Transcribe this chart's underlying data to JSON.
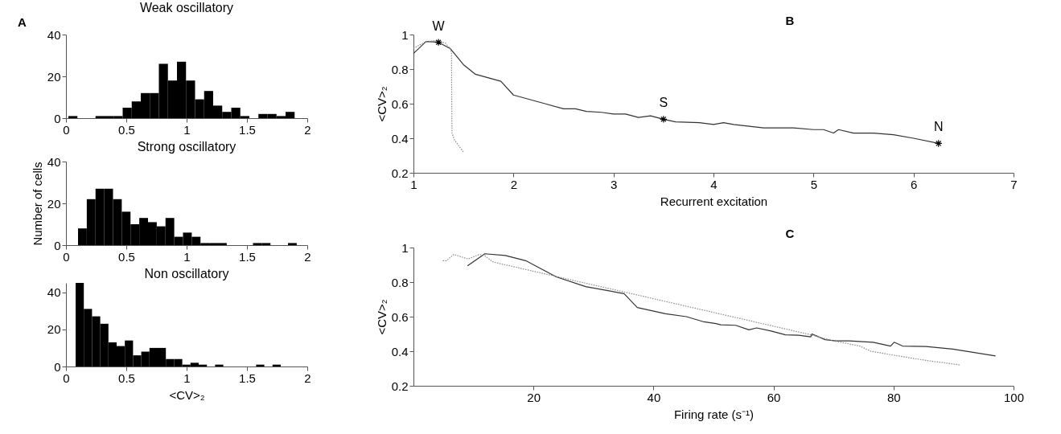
{
  "chart_data": [
    {
      "type": "histogram",
      "title": "Weak oscillatory",
      "annotations": [
        "A"
      ],
      "color": "#000000",
      "xlim": [
        0,
        2
      ],
      "xticks": [
        0,
        0.5,
        1,
        1.5,
        2
      ],
      "ylim": [
        0,
        40
      ],
      "yticks": [
        0,
        20,
        40
      ],
      "bins": [
        0.02,
        0.095,
        0.17,
        0.245,
        0.32,
        0.395,
        0.47,
        0.545,
        0.62,
        0.695,
        0.77,
        0.845,
        0.92,
        0.995,
        1.07,
        1.145,
        1.22,
        1.295,
        1.37,
        1.445,
        1.52,
        1.595,
        1.67,
        1.745,
        1.82,
        1.895
      ],
      "values": [
        1,
        0,
        0,
        1,
        1,
        1,
        5,
        8,
        12,
        12,
        26,
        18,
        27,
        18,
        9,
        13,
        6,
        3,
        5,
        1,
        0,
        2,
        2,
        1,
        3
      ]
    },
    {
      "type": "histogram",
      "title": "Strong oscillatory",
      "ylabel": "Number of cells",
      "color": "#000000",
      "xlim": [
        0,
        2
      ],
      "xticks": [
        0,
        0.5,
        1,
        1.5,
        2
      ],
      "ylim": [
        0,
        40
      ],
      "yticks": [
        0,
        20,
        40
      ],
      "bins": [
        0.1,
        0.1725,
        0.245,
        0.3175,
        0.39,
        0.4625,
        0.535,
        0.6075,
        0.68,
        0.7525,
        0.825,
        0.8975,
        0.97,
        1.0425,
        1.115,
        1.1875,
        1.26,
        1.3325,
        1.405,
        1.4775,
        1.55,
        1.6225,
        1.695,
        1.7675,
        1.84,
        1.9125
      ],
      "values": [
        8,
        22,
        27,
        27,
        22,
        16,
        10,
        13,
        11,
        9,
        13,
        4,
        6,
        4,
        1,
        1,
        1,
        0,
        0,
        0,
        1,
        1,
        0,
        0,
        1
      ]
    },
    {
      "type": "histogram",
      "title": "Non oscillatory",
      "xlabel": "<CV>₂",
      "color": "#000000",
      "xlim": [
        0,
        2
      ],
      "xticks": [
        0,
        0.5,
        1,
        1.5,
        2
      ],
      "ylim": [
        0,
        45
      ],
      "yticks": [
        0,
        20,
        40
      ],
      "bins": [
        0.08,
        0.148,
        0.216,
        0.284,
        0.352,
        0.42,
        0.488,
        0.556,
        0.624,
        0.692,
        0.76,
        0.828,
        0.896,
        0.964,
        1.032,
        1.1,
        1.168,
        1.236,
        1.304,
        1.372,
        1.44,
        1.508,
        1.576,
        1.644,
        1.712,
        1.78
      ],
      "values": [
        45,
        31,
        27,
        23,
        13,
        11,
        14,
        6,
        8,
        10,
        10,
        4,
        4,
        1,
        2,
        1,
        0,
        1,
        0,
        0,
        0,
        0,
        1,
        0,
        1
      ]
    },
    {
      "type": "line",
      "xlabel": "Recurrent excitation",
      "ylabel": "<CV>₂",
      "xlim": [
        1,
        7
      ],
      "xticks": [
        1,
        2,
        3,
        4,
        5,
        6,
        7
      ],
      "ylim": [
        0.2,
        1
      ],
      "yticks": [
        0.2,
        0.4,
        0.6,
        0.8,
        1
      ],
      "annotations": [
        "B",
        {
          "text": "W",
          "x": 1.25,
          "y": 0.955
        },
        {
          "text": "S",
          "x": 3.5,
          "y": 0.51
        },
        {
          "text": "N",
          "x": 6.25,
          "y": 0.37
        }
      ],
      "series": [
        {
          "type": "line",
          "color": "#333333",
          "line_style": "solid",
          "x": [
            1,
            1.126,
            1.246,
            1.366,
            1.5,
            1.62,
            1.874,
            2,
            2.315,
            2.5,
            2.62,
            2.73,
            2.88,
            3,
            3.12,
            3.25,
            3.37,
            3.5,
            3.62,
            3.86,
            4,
            4.1,
            4.2,
            4.5,
            4.8,
            5,
            5.1,
            5.2,
            5.25,
            5.4,
            5.6,
            5.8,
            6,
            6.25
          ],
          "values": [
            0.89,
            0.96,
            0.956,
            0.92,
            0.826,
            0.77,
            0.73,
            0.65,
            0.6,
            0.57,
            0.57,
            0.555,
            0.55,
            0.54,
            0.54,
            0.52,
            0.53,
            0.51,
            0.495,
            0.49,
            0.48,
            0.49,
            0.48,
            0.46,
            0.46,
            0.45,
            0.45,
            0.43,
            0.45,
            0.43,
            0.43,
            0.42,
            0.4,
            0.37
          ]
        },
        {
          "type": "line",
          "color": "#888888",
          "line_style": "dotted",
          "x": [
            1,
            1.126,
            1.246,
            1.32,
            1.366,
            1.38,
            1.385,
            1.41,
            1.5
          ],
          "values": [
            0.92,
            0.96,
            0.965,
            0.95,
            0.92,
            0.9,
            0.43,
            0.39,
            0.32
          ]
        },
        {
          "type": "scatter",
          "color": "#000000",
          "marker": "cross",
          "x": [
            1.25,
            3.5,
            6.25
          ],
          "values": [
            0.955,
            0.51,
            0.37
          ]
        }
      ]
    },
    {
      "type": "line",
      "xlabel": "Firing rate (s⁻¹)",
      "ylabel": "<CV>₂",
      "xlim": [
        0,
        100
      ],
      "xticks": [
        20,
        40,
        60,
        80,
        100
      ],
      "ylim": [
        0.2,
        1
      ],
      "yticks": [
        0.2,
        0.4,
        0.6,
        0.8,
        1
      ],
      "annotations": [
        "C"
      ],
      "series": [
        {
          "type": "line",
          "color": "#333333",
          "line_style": "solid",
          "x": [
            9,
            11.9,
            15.3,
            18.7,
            23.8,
            28.7,
            35.1,
            37.3,
            42,
            45.5,
            48.4,
            50.4,
            51.2,
            53.7,
            55.9,
            57.2,
            59.6,
            62,
            64.2,
            66.2,
            66.4,
            68.6,
            70.4,
            72.6,
            76.6,
            79.5,
            80.1,
            81.5,
            85.4,
            89.9,
            97
          ],
          "values": [
            0.894,
            0.964,
            0.954,
            0.924,
            0.83,
            0.774,
            0.733,
            0.653,
            0.617,
            0.6,
            0.57,
            0.56,
            0.553,
            0.55,
            0.524,
            0.535,
            0.517,
            0.495,
            0.492,
            0.483,
            0.5,
            0.467,
            0.46,
            0.46,
            0.452,
            0.43,
            0.452,
            0.43,
            0.427,
            0.412,
            0.373
          ]
        },
        {
          "type": "line",
          "color": "#888888",
          "line_style": "dotted",
          "x": [
            4.9,
            5.5,
            6.7,
            9.1,
            11,
            11.9,
            13.3,
            47.8,
            66,
            70,
            74.4,
            76.2,
            80,
            85.4,
            91.2
          ],
          "values": [
            0.924,
            0.924,
            0.96,
            0.934,
            0.96,
            0.952,
            0.916,
            0.642,
            0.497,
            0.46,
            0.43,
            0.4,
            0.377,
            0.347,
            0.32
          ]
        }
      ]
    }
  ]
}
